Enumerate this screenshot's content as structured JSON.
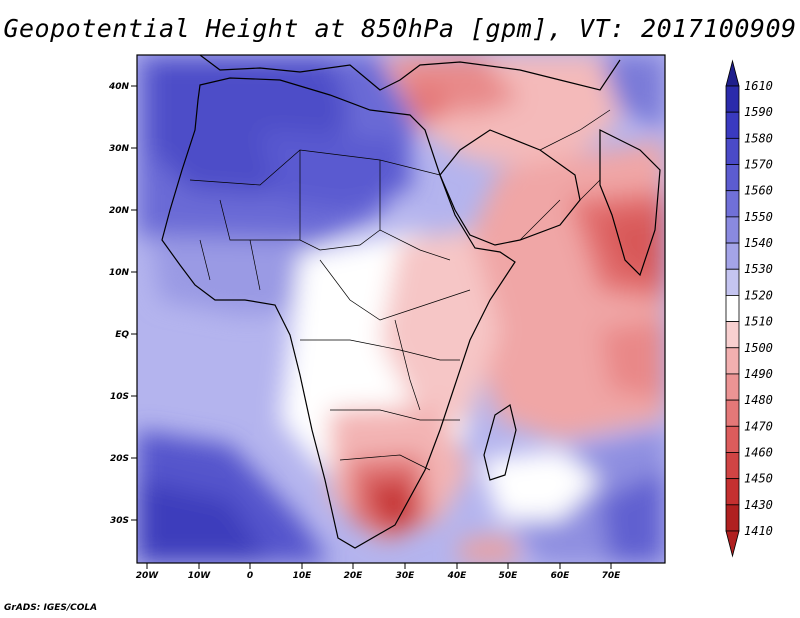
{
  "title": "Geopotential Height at 850hPa [gpm], VT: 2017100909",
  "footer": "GrADS: IGES/COLA",
  "map": {
    "lat_labels": [
      "40N",
      "30N",
      "20N",
      "10N",
      "EQ",
      "10S",
      "20S",
      "30S"
    ],
    "lon_labels": [
      "20W",
      "10W",
      "0",
      "10E",
      "20E",
      "30E",
      "40E",
      "50E",
      "60E",
      "70E"
    ],
    "lat_range": [
      -37,
      45
    ],
    "lon_range": [
      -22,
      80
    ]
  },
  "colorbar": {
    "levels": [
      "1610",
      "1590",
      "1580",
      "1570",
      "1560",
      "1550",
      "1540",
      "1530",
      "1520",
      "1510",
      "1500",
      "1490",
      "1480",
      "1470",
      "1460",
      "1450",
      "1430",
      "1410"
    ],
    "colors": [
      "#1f1f8c",
      "#2b2bab",
      "#3a3ac0",
      "#4a4ac8",
      "#5c5cd0",
      "#7070d8",
      "#8a8ae0",
      "#a4a4e8",
      "#c4c4f0",
      "#ffffff",
      "#f8d0d0",
      "#f2b0b0",
      "#ec9494",
      "#e47878",
      "#dc5c5c",
      "#d04444",
      "#c43030",
      "#b02020"
    ]
  }
}
